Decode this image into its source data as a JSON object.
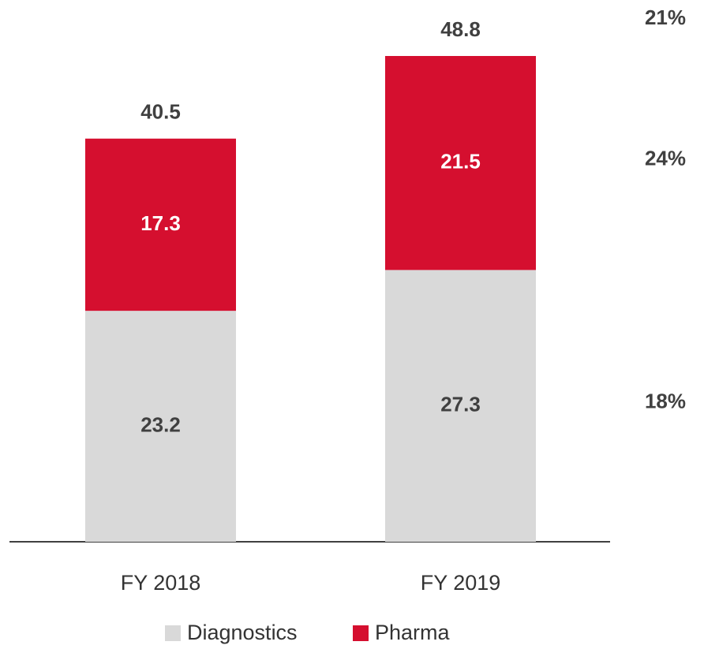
{
  "chart_data": {
    "type": "stacked_bar",
    "categories": [
      "FY 2018",
      "FY 2019"
    ],
    "series": [
      {
        "name": "Diagnostics",
        "color": "#d9d9d9",
        "label_color": "#404040",
        "values": [
          23.2,
          27.3
        ],
        "growth": "18%"
      },
      {
        "name": "Pharma",
        "color": "#d50f2f",
        "label_color": "#ffffff",
        "values": [
          17.3,
          21.5
        ],
        "growth": "24%"
      }
    ],
    "totals": [
      40.5,
      48.8
    ],
    "total_growth": "21%",
    "legend": "bottom"
  }
}
